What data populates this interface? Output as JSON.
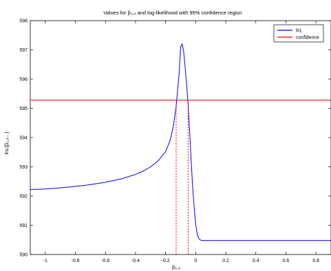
{
  "chart_data": {
    "type": "line",
    "title": "Values for β₁,₄ and log-likelihood with 95% confidence region",
    "xlabel": "β₁,₄",
    "ylabel": "lnL(β₁,₄...)",
    "xlim": [
      -1.1,
      0.9
    ],
    "ylim": [
      590,
      598
    ],
    "xticks": [
      -1,
      -0.8,
      -0.6,
      -0.4,
      -0.2,
      0,
      0.2,
      0.4,
      0.6,
      0.8
    ],
    "xtick_labels": [
      "-1",
      "-0.8",
      "-0.6",
      "-0.4",
      "-0.2",
      "0",
      "0.2",
      "0.4",
      "0.6",
      "0.8"
    ],
    "yticks": [
      590,
      591,
      592,
      593,
      594,
      595,
      596,
      597,
      598
    ],
    "ytick_labels": [
      "590",
      "591",
      "592",
      "593",
      "594",
      "595",
      "596",
      "597",
      "598"
    ],
    "grid": false,
    "legend_position": "top-right",
    "series": [
      {
        "name": "lnL",
        "color": "#0000ff",
        "style": "solid",
        "x": [
          -1.1,
          -1.0,
          -0.9,
          -0.8,
          -0.7,
          -0.6,
          -0.5,
          -0.4,
          -0.35,
          -0.3,
          -0.25,
          -0.2,
          -0.17,
          -0.15,
          -0.13,
          -0.11,
          -0.1,
          -0.09,
          -0.08,
          -0.07,
          -0.06,
          -0.05,
          -0.04,
          -0.03,
          -0.02,
          -0.01,
          0.0,
          0.01,
          0.02,
          0.03,
          0.04,
          0.1,
          0.3,
          0.5,
          0.7,
          0.9
        ],
        "y": [
          592.22,
          592.24,
          592.28,
          592.33,
          592.39,
          592.47,
          592.58,
          592.74,
          592.85,
          593.0,
          593.2,
          593.52,
          593.9,
          594.35,
          595.05,
          596.2,
          597.1,
          597.2,
          596.95,
          596.4,
          595.8,
          595.1,
          594.2,
          593.2,
          592.3,
          591.6,
          591.05,
          590.7,
          590.55,
          590.5,
          590.48,
          590.48,
          590.48,
          590.48,
          590.48,
          590.48
        ]
      },
      {
        "name": "confidence",
        "color": "#ff0000",
        "style": "solid",
        "x": [
          -1.1,
          0.9
        ],
        "y": [
          595.28,
          595.28
        ]
      }
    ],
    "confidence_bounds": {
      "color": "#ff0000",
      "style": "dotted",
      "x": [
        -0.13,
        -0.05
      ],
      "y_bottom": 590,
      "y_top": 595.28
    }
  }
}
